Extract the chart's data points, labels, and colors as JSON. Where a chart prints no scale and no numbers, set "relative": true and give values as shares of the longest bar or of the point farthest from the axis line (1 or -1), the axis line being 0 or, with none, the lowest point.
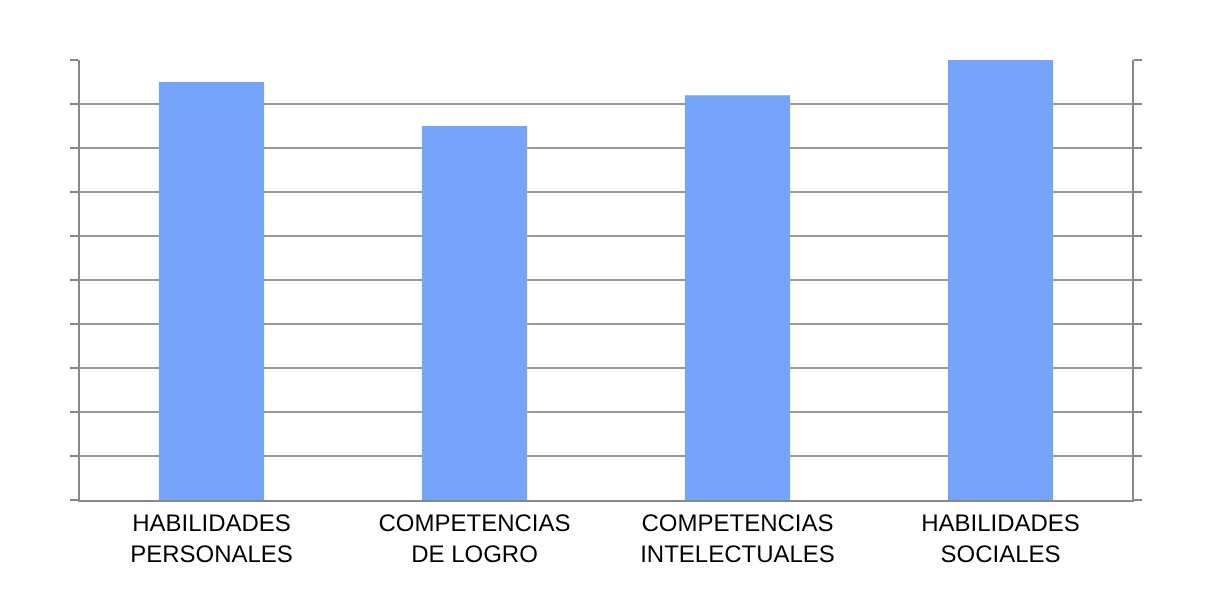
{
  "chart_data": {
    "type": "bar",
    "relative": true,
    "categories": [
      "HABILIDADES\nPERSONALES",
      "COMPETENCIAS\nDE LOGRO",
      "COMPETENCIAS\nINTELECTUALES",
      "HABILIDADES\nSOCIALES"
    ],
    "values": [
      0.95,
      0.85,
      0.92,
      1
    ],
    "color": "#77a4fb",
    "grid": "y",
    "tick_labels": "x",
    "legend": false
  }
}
